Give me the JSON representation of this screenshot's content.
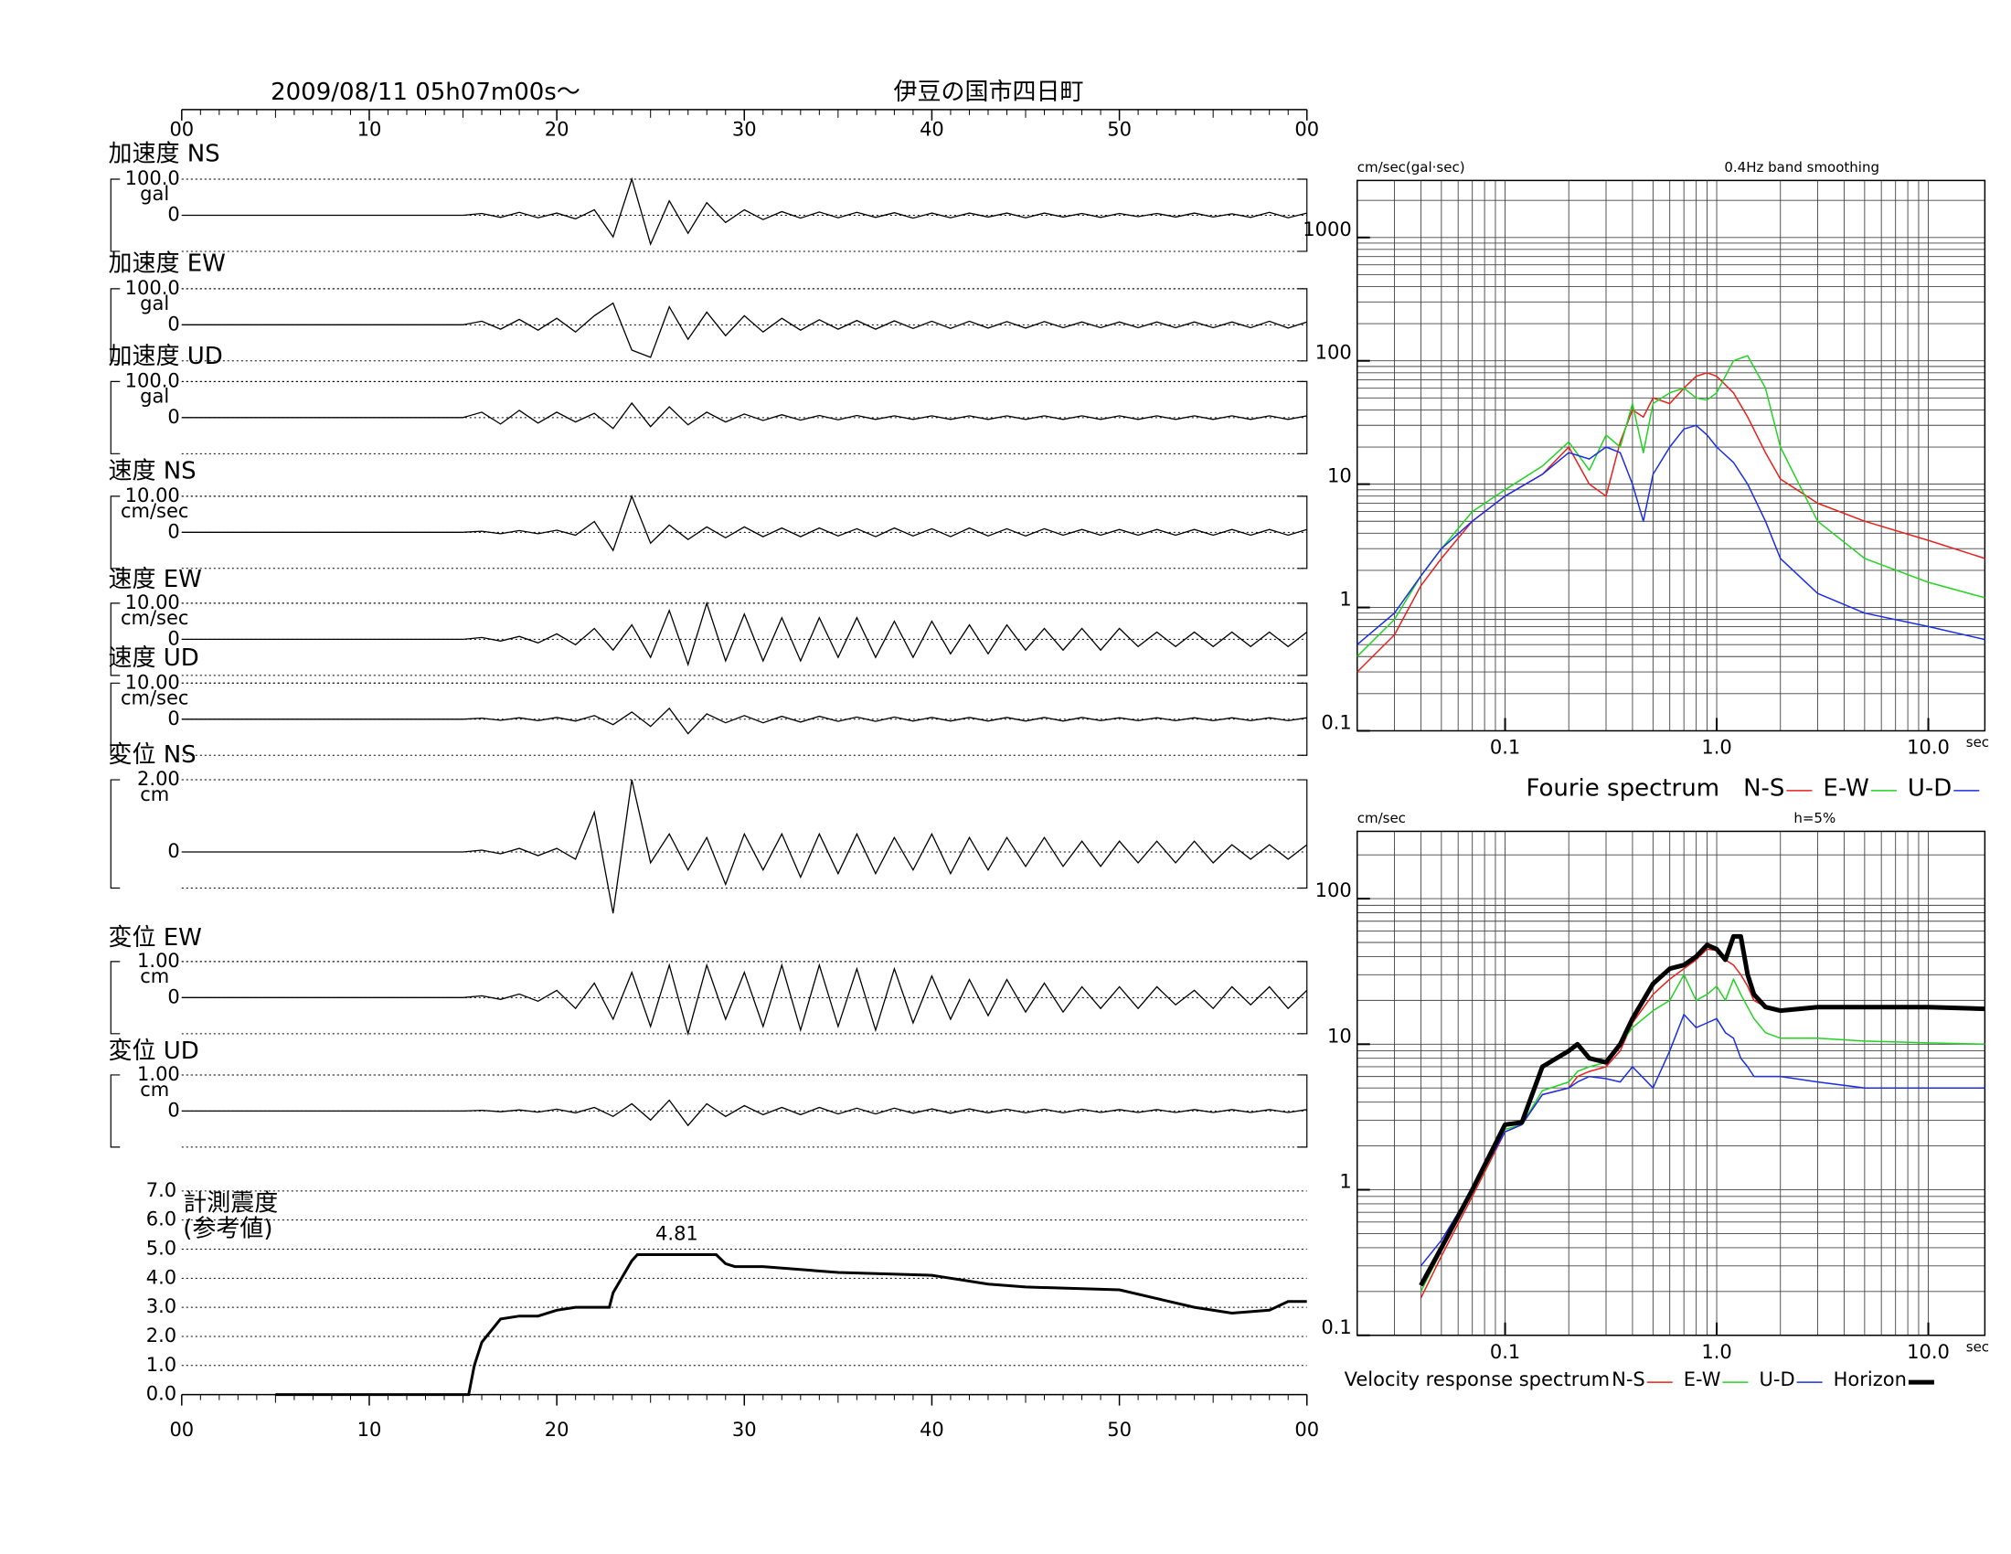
{
  "chart_data": [
    {
      "type": "waveform",
      "title": "2009/08/11  05h07m00s〜",
      "subtitle": "伊豆の国市四日町",
      "xlim": [
        0,
        60
      ],
      "xticks": [
        {
          "value": 0,
          "label": "00"
        },
        10,
        20,
        30,
        40,
        50,
        {
          "value": 60,
          "label": "00"
        }
      ],
      "x": [
        0,
        15,
        16,
        17,
        18,
        19,
        20,
        21,
        22,
        23,
        24,
        25,
        26,
        27,
        28,
        29,
        30,
        31,
        32,
        33,
        34,
        35,
        36,
        37,
        38,
        39,
        40,
        41,
        42,
        43,
        44,
        45,
        46,
        47,
        48,
        49,
        50,
        51,
        52,
        53,
        54,
        55,
        56,
        57,
        58,
        59,
        60
      ],
      "traces": [
        {
          "name": "加速度 NS",
          "unit": "gal",
          "ylim": [
            -100,
            100
          ],
          "yticks": [
            {
              "value": 100,
              "label": "100.0"
            },
            0
          ],
          "values": [
            0,
            0,
            5,
            -6,
            8,
            -7,
            6,
            -10,
            15,
            -60,
            100,
            -80,
            40,
            -50,
            35,
            -20,
            15,
            -12,
            10,
            -8,
            9,
            -7,
            8,
            -6,
            7,
            -8,
            6,
            -7,
            6,
            -5,
            6,
            -7,
            6,
            -5,
            5,
            -6,
            5,
            -4,
            5,
            -5,
            6,
            -5,
            4,
            -6,
            8,
            -7,
            6
          ]
        },
        {
          "name": "加速度 EW",
          "unit": "gal",
          "ylim": [
            -100,
            100
          ],
          "yticks": [
            {
              "value": 100,
              "label": "100.0"
            },
            0
          ],
          "values": [
            0,
            0,
            10,
            -12,
            15,
            -15,
            18,
            -20,
            25,
            60,
            -70,
            -90,
            50,
            -40,
            35,
            -30,
            25,
            -20,
            18,
            -15,
            14,
            -12,
            12,
            -12,
            11,
            -10,
            10,
            -10,
            10,
            -9,
            9,
            -9,
            9,
            -8,
            8,
            -8,
            8,
            -8,
            8,
            -8,
            8,
            -8,
            8,
            -8,
            10,
            -9,
            8
          ]
        },
        {
          "name": "加速度 UD",
          "unit": "gal",
          "ylim": [
            -100,
            100
          ],
          "yticks": [
            {
              "value": 100,
              "label": "100.0"
            },
            0
          ],
          "values": [
            0,
            0,
            15,
            -18,
            20,
            -15,
            15,
            -12,
            12,
            -30,
            40,
            -25,
            30,
            -20,
            15,
            -12,
            10,
            -8,
            8,
            -7,
            6,
            -6,
            6,
            -5,
            5,
            -5,
            5,
            -5,
            5,
            -5,
            5,
            -5,
            5,
            -5,
            5,
            -5,
            5,
            -5,
            5,
            -5,
            5,
            -5,
            5,
            -5,
            5,
            -5,
            5
          ]
        },
        {
          "name": "速度 NS",
          "unit": "cm/sec",
          "ylim": [
            -10,
            10
          ],
          "yticks": [
            {
              "value": 10,
              "label": "10.00"
            },
            0
          ],
          "values": [
            0,
            0,
            0.3,
            -0.4,
            0.5,
            -0.4,
            0.6,
            -0.8,
            3,
            -5,
            10,
            -3,
            2,
            -2,
            1.5,
            -1.5,
            1.5,
            -1.2,
            1.2,
            -1.2,
            1.2,
            -1,
            1,
            -1.2,
            1.2,
            -1,
            1,
            -1.2,
            1.2,
            -1,
            1,
            -1,
            1,
            -0.8,
            0.8,
            -0.8,
            0.8,
            -0.8,
            0.8,
            -0.8,
            0.8,
            -0.8,
            0.8,
            -0.8,
            0.8,
            -0.8,
            0.8
          ]
        },
        {
          "name": "速度 EW",
          "unit": "cm/sec",
          "ylim": [
            -10,
            10
          ],
          "yticks": [
            {
              "value": 10,
              "label": "10.00"
            },
            0
          ],
          "values": [
            0,
            0,
            0.5,
            -0.5,
            0.8,
            -1,
            1.5,
            -1.5,
            3,
            -3,
            4,
            -5,
            8,
            -7,
            10,
            -6,
            7,
            -6,
            6,
            -6,
            6,
            -5,
            6,
            -5,
            5,
            -5,
            5,
            -4,
            4,
            -4,
            4,
            -3,
            3,
            -3,
            3,
            -3,
            3,
            -2,
            2,
            -2,
            2,
            -2,
            2,
            -2,
            2,
            -2,
            2
          ]
        },
        {
          "name": "速度 UD",
          "unit": "cm/sec",
          "ylim": [
            -10,
            10
          ],
          "yticks": [
            {
              "value": 10,
              "label": "10.00"
            },
            0
          ],
          "values": [
            0,
            0,
            0.3,
            -0.3,
            0.4,
            -0.4,
            0.5,
            -0.5,
            1,
            -1.5,
            2,
            -2,
            3,
            -4,
            1.5,
            -1,
            1,
            -1,
            0.8,
            -0.8,
            0.8,
            -0.6,
            0.6,
            -0.6,
            0.6,
            -0.5,
            0.5,
            -0.5,
            0.5,
            -0.5,
            0.5,
            -0.5,
            0.5,
            -0.5,
            0.5,
            -0.4,
            0.4,
            -0.4,
            0.4,
            -0.4,
            0.4,
            -0.4,
            0.4,
            -0.4,
            0.4,
            -0.4,
            0.4
          ]
        },
        {
          "name": "変位 NS",
          "unit": "cm",
          "ylim": [
            -1,
            2
          ],
          "yticks": [
            {
              "value": 2,
              "label": "2.00"
            },
            0
          ],
          "values": [
            0,
            0,
            0.05,
            -0.05,
            0.1,
            -0.1,
            0.1,
            -0.2,
            1.1,
            -1.7,
            2,
            -0.3,
            0.5,
            -0.5,
            0.4,
            -0.9,
            0.5,
            -0.5,
            0.5,
            -0.7,
            0.5,
            -0.6,
            0.5,
            -0.6,
            0.4,
            -0.5,
            0.5,
            -0.6,
            0.4,
            -0.5,
            0.4,
            -0.4,
            0.4,
            -0.4,
            0.3,
            -0.4,
            0.3,
            -0.3,
            0.3,
            -0.3,
            0.3,
            -0.3,
            0.2,
            -0.2,
            0.2,
            -0.2,
            0.2
          ]
        },
        {
          "name": "変位 EW",
          "unit": "cm",
          "ylim": [
            -1,
            1
          ],
          "yticks": [
            {
              "value": 1,
              "label": "1.00"
            },
            0
          ],
          "values": [
            0,
            0,
            0.05,
            -0.05,
            0.1,
            -0.1,
            0.2,
            -0.3,
            0.4,
            -0.6,
            0.7,
            -0.8,
            0.9,
            -1,
            0.9,
            -0.6,
            0.7,
            -0.8,
            0.9,
            -0.9,
            0.9,
            -0.8,
            0.8,
            -0.9,
            0.8,
            -0.7,
            0.6,
            -0.6,
            0.5,
            -0.5,
            0.5,
            -0.4,
            0.4,
            -0.4,
            0.3,
            -0.3,
            0.3,
            -0.3,
            0.3,
            -0.2,
            0.2,
            -0.3,
            0.3,
            -0.2,
            0.3,
            -0.3,
            0.2
          ]
        },
        {
          "name": "変位 UD",
          "unit": "cm",
          "ylim": [
            -1,
            1
          ],
          "yticks": [
            {
              "value": 1,
              "label": "1.00"
            },
            0
          ],
          "values": [
            0,
            0,
            0.02,
            -0.02,
            0.03,
            -0.03,
            0.05,
            -0.05,
            0.1,
            -0.15,
            0.2,
            -0.25,
            0.3,
            -0.4,
            0.2,
            -0.15,
            0.15,
            -0.1,
            0.1,
            -0.1,
            0.1,
            -0.08,
            0.08,
            -0.08,
            0.08,
            -0.06,
            0.06,
            -0.06,
            0.06,
            -0.05,
            0.05,
            -0.05,
            0.05,
            -0.05,
            0.05,
            -0.04,
            0.04,
            -0.04,
            0.04,
            -0.04,
            0.04,
            -0.04,
            0.04,
            -0.04,
            0.04,
            -0.04,
            0.04
          ]
        }
      ]
    },
    {
      "type": "line",
      "title": "計測震度",
      "subtitle": "(参考値)",
      "xlim": [
        0,
        60
      ],
      "xticks": [
        {
          "value": 0,
          "label": "00"
        },
        10,
        20,
        30,
        40,
        50,
        {
          "value": 60,
          "label": "00"
        }
      ],
      "ylim": [
        0,
        7
      ],
      "yticks": [
        {
          "value": 0,
          "label": "0.0"
        },
        {
          "value": 1,
          "label": "1.0"
        },
        {
          "value": 2,
          "label": "2.0"
        },
        {
          "value": 3,
          "label": "3.0"
        },
        {
          "value": 4,
          "label": "4.0"
        },
        {
          "value": 5,
          "label": "5.0"
        },
        {
          "value": 6,
          "label": "6.0"
        },
        {
          "value": 7,
          "label": "7.0"
        }
      ],
      "x": [
        5,
        15.3,
        15.6,
        16,
        17,
        18,
        19,
        20,
        21,
        22,
        22.8,
        23,
        24,
        24.3,
        28.5,
        29,
        29.5,
        31,
        35,
        40,
        41,
        43,
        45,
        50,
        52,
        54,
        56,
        58,
        59,
        60
      ],
      "values": [
        0,
        0,
        1,
        1.8,
        2.6,
        2.7,
        2.7,
        2.9,
        3,
        3,
        3,
        3.5,
        4.6,
        4.81,
        4.81,
        4.5,
        4.4,
        4.4,
        4.2,
        4.1,
        4,
        3.8,
        3.7,
        3.6,
        3.3,
        3,
        2.8,
        2.9,
        3.2,
        3.2
      ],
      "color": "#000000",
      "peak": 4.81
    },
    {
      "type": "loglog",
      "ylabel": "cm/sec(gal·sec)",
      "note": "0.4Hz band smoothing",
      "xlabel": "sec",
      "legend_title": "Fourie spectrum",
      "xlim": [
        0.02,
        18.5
      ],
      "ylim": [
        0.1,
        2900
      ],
      "xticks": [
        0.1,
        {
          "value": 1,
          "label": "1.0"
        },
        {
          "value": 10,
          "label": "10.0"
        }
      ],
      "yticks": [
        0.1,
        1,
        10,
        100,
        1000
      ],
      "grid": true,
      "x": [
        0.02,
        0.03,
        0.04,
        0.05,
        0.07,
        0.1,
        0.15,
        0.2,
        0.25,
        0.3,
        0.35,
        0.4,
        0.45,
        0.5,
        0.6,
        0.7,
        0.8,
        0.9,
        1,
        1.2,
        1.4,
        1.7,
        2,
        3,
        5,
        10,
        18.5
      ],
      "series": [
        {
          "name": "N-S",
          "color": "#e8201a",
          "linewidth": 1.5,
          "values": [
            0.3,
            0.6,
            1.5,
            2.5,
            5,
            8,
            12,
            20,
            10,
            8,
            22,
            40,
            35,
            50,
            45,
            60,
            75,
            80,
            75,
            55,
            35,
            18,
            11,
            7,
            5,
            3.5,
            2.5
          ]
        },
        {
          "name": "E-W",
          "color": "#22d322",
          "linewidth": 1.5,
          "values": [
            0.4,
            0.8,
            1.8,
            3,
            6,
            9,
            14,
            22,
            13,
            25,
            20,
            45,
            18,
            45,
            55,
            60,
            50,
            48,
            55,
            100,
            110,
            60,
            20,
            5,
            2.5,
            1.6,
            1.2
          ]
        },
        {
          "name": "U-D",
          "color": "#1a2ee8",
          "linewidth": 1.5,
          "values": [
            0.5,
            0.9,
            1.8,
            3,
            5,
            8,
            12,
            18,
            16,
            20,
            18,
            10,
            5,
            12,
            20,
            28,
            30,
            25,
            20,
            15,
            10,
            5,
            2.5,
            1.3,
            0.9,
            0.7,
            0.55
          ]
        }
      ]
    },
    {
      "type": "loglog",
      "ylabel": "cm/sec",
      "note": "h=5%",
      "xlabel": "sec",
      "legend_title": "Velocity response spectrum",
      "xlim": [
        0.02,
        18.5
      ],
      "ylim": [
        0.1,
        290
      ],
      "xticks": [
        0.1,
        {
          "value": 1,
          "label": "1.0"
        },
        {
          "value": 10,
          "label": "10.0"
        }
      ],
      "yticks": [
        0.1,
        1,
        10,
        100
      ],
      "grid": true,
      "x": [
        0.04,
        0.05,
        0.07,
        0.1,
        0.12,
        0.15,
        0.2,
        0.22,
        0.25,
        0.3,
        0.35,
        0.4,
        0.5,
        0.6,
        0.7,
        0.8,
        0.9,
        1,
        1.1,
        1.2,
        1.3,
        1.4,
        1.5,
        1.7,
        2,
        3,
        5,
        10,
        18.5
      ],
      "series": [
        {
          "name": "N-S",
          "color": "#e8201a",
          "linewidth": 1.5,
          "values": [
            0.18,
            0.35,
            0.9,
            2.5,
            2.8,
            4.5,
            5,
            6,
            6.5,
            7,
            9,
            14,
            22,
            28,
            33,
            38,
            45,
            44,
            38,
            35,
            30,
            25,
            20,
            18,
            17,
            18,
            18,
            18,
            17.5
          ]
        },
        {
          "name": "E-W",
          "color": "#22d322",
          "linewidth": 1.5,
          "values": [
            0.2,
            0.38,
            0.95,
            2.6,
            2.8,
            4.8,
            5.5,
            6.5,
            7,
            7.5,
            10,
            13,
            17,
            20,
            30,
            20,
            22,
            25,
            20,
            28,
            22,
            18,
            15,
            12,
            11,
            11,
            10.5,
            10.2,
            10
          ]
        },
        {
          "name": "U-D",
          "color": "#1a2ee8",
          "linewidth": 1.5,
          "values": [
            0.3,
            0.45,
            1,
            2.5,
            2.8,
            4.5,
            5,
            5.5,
            6,
            5.8,
            5.5,
            7,
            5,
            9,
            16,
            13,
            14,
            15,
            12,
            11,
            8,
            7,
            6,
            6,
            6,
            5.5,
            5,
            5,
            5
          ]
        },
        {
          "name": "Horizon",
          "color": "#000000",
          "linewidth": 5,
          "values": [
            0.22,
            0.4,
            1,
            2.8,
            2.9,
            7,
            9,
            10,
            8,
            7.5,
            10,
            15,
            26,
            33,
            35,
            40,
            48,
            45,
            38,
            55,
            55,
            30,
            22,
            18,
            17,
            18,
            18,
            18,
            17.5
          ]
        }
      ]
    }
  ]
}
